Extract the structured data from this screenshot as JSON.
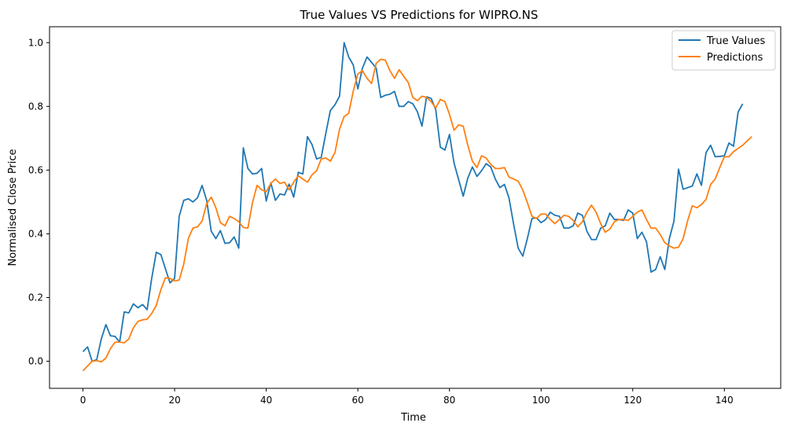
{
  "chart_data": {
    "type": "line",
    "title": "True Values VS Predictions for WIPRO.NS",
    "xlabel": "Time",
    "ylabel": "Normalised Close Price",
    "xlim": [
      -7.3,
      152.3
    ],
    "ylim": [
      -0.085,
      1.05
    ],
    "xticks": [
      0,
      20,
      40,
      60,
      80,
      100,
      120,
      140
    ],
    "yticks": [
      0.0,
      0.2,
      0.4,
      0.6,
      0.8,
      1.0
    ],
    "xtick_labels": [
      "0",
      "20",
      "40",
      "60",
      "80",
      "100",
      "120",
      "140"
    ],
    "ytick_labels": [
      "0.0",
      "0.2",
      "0.4",
      "0.6",
      "0.8",
      "1.0"
    ],
    "grid": false,
    "legend_position": "top-right",
    "series": [
      {
        "name": "True Values",
        "color": "#1f77b4",
        "values": [
          0.03,
          0.045,
          0.0,
          0.005,
          0.07,
          0.115,
          0.08,
          0.078,
          0.06,
          0.155,
          0.152,
          0.18,
          0.168,
          0.178,
          0.162,
          0.26,
          0.342,
          0.335,
          0.29,
          0.246,
          0.26,
          0.455,
          0.505,
          0.51,
          0.5,
          0.513,
          0.552,
          0.505,
          0.408,
          0.385,
          0.41,
          0.37,
          0.372,
          0.39,
          0.355,
          0.67,
          0.605,
          0.588,
          0.59,
          0.605,
          0.503,
          0.56,
          0.505,
          0.525,
          0.522,
          0.556,
          0.515,
          0.593,
          0.588,
          0.705,
          0.68,
          0.635,
          0.64,
          0.715,
          0.787,
          0.805,
          0.832,
          1.0,
          0.955,
          0.93,
          0.855,
          0.92,
          0.955,
          0.938,
          0.92,
          0.828,
          0.835,
          0.838,
          0.847,
          0.8,
          0.8,
          0.815,
          0.808,
          0.783,
          0.738,
          0.83,
          0.825,
          0.79,
          0.672,
          0.663,
          0.712,
          0.622,
          0.57,
          0.518,
          0.575,
          0.61,
          0.58,
          0.598,
          0.62,
          0.61,
          0.572,
          0.545,
          0.555,
          0.512,
          0.43,
          0.355,
          0.33,
          0.385,
          0.448,
          0.45,
          0.435,
          0.445,
          0.468,
          0.458,
          0.455,
          0.418,
          0.418,
          0.425,
          0.465,
          0.458,
          0.408,
          0.382,
          0.382,
          0.418,
          0.425,
          0.465,
          0.445,
          0.445,
          0.442,
          0.475,
          0.465,
          0.385,
          0.405,
          0.375,
          0.28,
          0.288,
          0.328,
          0.288,
          0.385,
          0.44,
          0.603,
          0.54,
          0.545,
          0.55,
          0.588,
          0.552,
          0.655,
          0.678,
          0.642,
          0.643,
          0.645,
          0.685,
          0.675,
          0.782,
          0.808
        ]
      },
      {
        "name": "Predictions",
        "color": "#ff7f0e",
        "values": [
          -0.03,
          -0.015,
          0.0,
          0.002,
          -0.002,
          0.01,
          0.04,
          0.06,
          0.06,
          0.058,
          0.07,
          0.105,
          0.125,
          0.13,
          0.132,
          0.15,
          0.175,
          0.225,
          0.262,
          0.26,
          0.252,
          0.255,
          0.305,
          0.385,
          0.418,
          0.422,
          0.44,
          0.495,
          0.515,
          0.482,
          0.435,
          0.425,
          0.455,
          0.448,
          0.438,
          0.42,
          0.418,
          0.498,
          0.552,
          0.538,
          0.532,
          0.558,
          0.572,
          0.558,
          0.562,
          0.538,
          0.562,
          0.582,
          0.572,
          0.562,
          0.585,
          0.598,
          0.635,
          0.638,
          0.628,
          0.655,
          0.728,
          0.768,
          0.778,
          0.848,
          0.902,
          0.912,
          0.888,
          0.872,
          0.935,
          0.948,
          0.945,
          0.912,
          0.888,
          0.915,
          0.895,
          0.875,
          0.828,
          0.818,
          0.832,
          0.828,
          0.815,
          0.795,
          0.822,
          0.815,
          0.775,
          0.725,
          0.742,
          0.738,
          0.678,
          0.628,
          0.608,
          0.645,
          0.638,
          0.618,
          0.605,
          0.605,
          0.608,
          0.578,
          0.572,
          0.565,
          0.538,
          0.498,
          0.455,
          0.448,
          0.462,
          0.462,
          0.445,
          0.432,
          0.445,
          0.458,
          0.455,
          0.442,
          0.422,
          0.438,
          0.468,
          0.49,
          0.468,
          0.432,
          0.405,
          0.415,
          0.438,
          0.445,
          0.445,
          0.442,
          0.455,
          0.468,
          0.475,
          0.445,
          0.418,
          0.418,
          0.398,
          0.372,
          0.362,
          0.355,
          0.358,
          0.385,
          0.442,
          0.488,
          0.482,
          0.492,
          0.508,
          0.555,
          0.572,
          0.608,
          0.642,
          0.642,
          0.658,
          0.668,
          0.678,
          0.692,
          0.705
        ]
      }
    ]
  }
}
